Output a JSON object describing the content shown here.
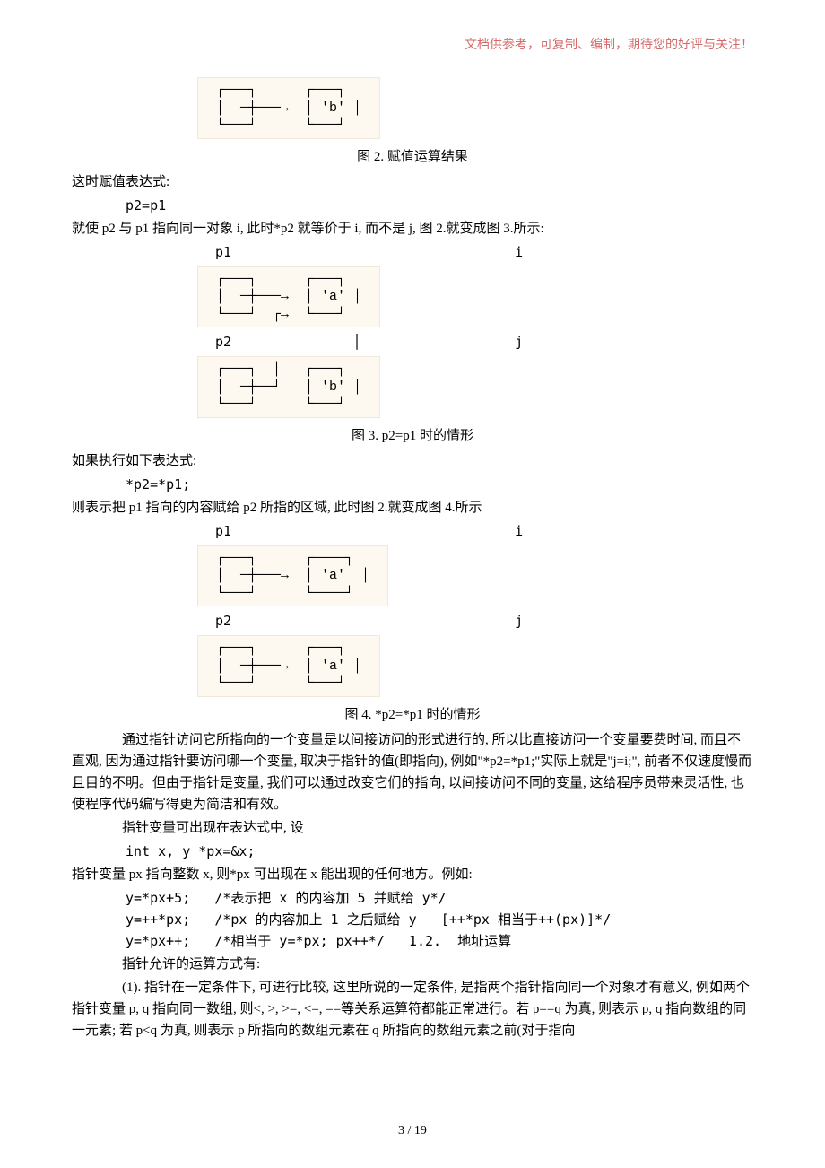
{
  "header_note": "文档供参考，可复制、编制，期待您的好评与关注！",
  "diagram2": {
    "ascii": "┌───┐      ┌───┐\n│  ─┼───→  │ 'b' │\n└───┘      └───┘",
    "caption": "图 2.  赋值运算结果"
  },
  "line1": "这时赋值表达式:",
  "code1": "p2=p1",
  "line2": "就使 p2 与 p1 指向同一对象 i, 此时*p2 就等价于 i, 而不是 j, 图 2.就变成图 3.所示:",
  "labels3a": "p1                                   i",
  "labels3b": "p2               │                   j",
  "diagram3a": {
    "ascii": "┌───┐      ┌───┐\n│  ─┼───→  │ 'a' │\n└───┘  ┌→  └───┘"
  },
  "diagram3b": {
    "ascii": "┌───┐  │   ┌───┐\n│  ─┼──┘   │ 'b' │\n└───┘      └───┘"
  },
  "caption3": "图 3.  p2=p1 时的情形",
  "line3": "如果执行如下表达式:",
  "code2": "*p2=*p1;",
  "line4": "则表示把 p1 指向的内容赋给 p2 所指的区域, 此时图 2.就变成图 4.所示",
  "labels4a": "p1                                   i",
  "labels4b": "p2                                   j",
  "diagram4a": {
    "ascii": "┌───┐      ┌────┐\n│  ─┼───→  │ 'a'  │\n└───┘      └────┘"
  },
  "diagram4b": {
    "ascii": "┌───┐      ┌───┐\n│  ─┼───→  │ 'a' │\n└───┘      └───┘"
  },
  "caption4": "图 4.  *p2=*p1 时的情形",
  "para1": "通过指针访问它所指向的一个变量是以间接访问的形式进行的, 所以比直接访问一个变量要费时间, 而且不直观, 因为通过指针要访问哪一个变量, 取决于指针的值(即指向), 例如\"*p2=*p1;\"实际上就是\"j=i;\", 前者不仅速度慢而且目的不明。但由于指针是变量, 我们可以通过改变它们的指向, 以间接访问不同的变量, 这给程序员带来灵活性, 也使程序代码编写得更为简洁和有效。",
  "para2": "指针变量可出现在表达式中, 设",
  "code3": "int x, y *px=&x;",
  "line5": "指针变量 px 指向整数 x, 则*px 可出现在 x 能出现的任何地方。例如:",
  "codeY1": "y=*px+5;   /*表示把 x 的内容加 5 并赋给 y*/",
  "codeY2": "y=++*px;   /*px 的内容加上 1 之后赋给 y   [++*px 相当于++(px)]*/",
  "codeY3": "y=*px++;   /*相当于 y=*px; px++*/   1.2.  地址运算",
  "para3": "指针允许的运算方式有:",
  "para4": "(1). 指针在一定条件下, 可进行比较, 这里所说的一定条件,    是指两个指针指向同一个对象才有意义, 例如两个指针变量 p, q 指向同一数组, 则<, >, >=, <=, ==等关系运算符都能正常进行。若 p==q 为真, 则表示 p, q 指向数组的同一元素; 若 p<q 为真, 则表示 p 所指向的数组元素在 q 所指向的数组元素之前(对于指向",
  "footer": "3 / 19"
}
